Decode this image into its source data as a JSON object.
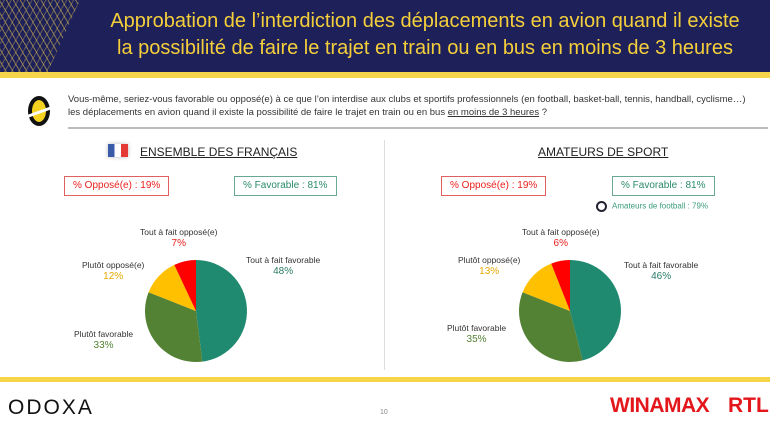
{
  "header": {
    "title_line1": "Approbation de l’interdiction des déplacements en avion quand il existe",
    "title_line2": "la possibilité de faire le trajet en train ou en bus en moins de 3 heures"
  },
  "question": {
    "text_line1": "Vous-même, seriez-vous favorable ou opposé(e) à ce que l’on interdise aux clubs et sportifs professionnels (en football, basket-ball, tennis, handball, cyclisme…)",
    "text_line2": "les déplacements en avion quand il existe la possibilité de faire le trajet en train ou en bus ",
    "text_underlined": "en moins de 3 heures",
    "text_end": " ?"
  },
  "colors": {
    "tout_fav": "#1f8a70",
    "plutot_fav": "#548235",
    "plutot_opp": "#ffc000",
    "tout_opp": "#ff0000"
  },
  "chart_data": [
    {
      "type": "pie",
      "title": "ENSEMBLE DES FRANÇAIS",
      "opposed_label": "% Opposé(e) : 19%",
      "favorable_label": "% Favorable : 81%",
      "slices": [
        {
          "label": "Tout à fait favorable",
          "value": 48,
          "text": "48%"
        },
        {
          "label": "Plutôt favorable",
          "value": 33,
          "text": "33%"
        },
        {
          "label": "Plutôt opposé(e)",
          "value": 12,
          "text": "12%"
        },
        {
          "label": "Tout à fait opposé(e)",
          "value": 7,
          "text": "7%"
        }
      ]
    },
    {
      "type": "pie",
      "title": "AMATEURS DE SPORT",
      "opposed_label": "% Opposé(e) : 19%",
      "favorable_label": "% Favorable : 81%",
      "football_note": "Amateurs de football : 79%",
      "slices": [
        {
          "label": "Tout à fait favorable",
          "value": 46,
          "text": "46%"
        },
        {
          "label": "Plutôt favorable",
          "value": 35,
          "text": "35%"
        },
        {
          "label": "Plutôt opposé(e)",
          "value": 13,
          "text": "13%"
        },
        {
          "label": "Tout à fait opposé(e)",
          "value": 6,
          "text": "6%"
        }
      ]
    }
  ],
  "footer": {
    "logo": "ODOXA",
    "page": "10",
    "sponsor1": "WINAMAX",
    "sponsor2": "RTL"
  }
}
